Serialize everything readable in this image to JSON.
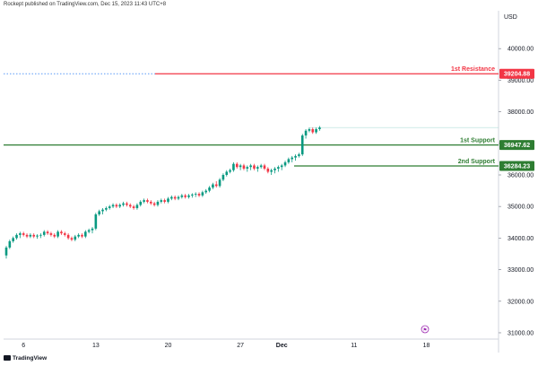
{
  "header": {
    "credit": "Rockept published on TradingView.com, Dec 15, 2023 11:43 UTC+8"
  },
  "footer": {
    "logo": "TradingView"
  },
  "price_axis": {
    "currency": "USD"
  },
  "colors": {
    "resistance": "#f23645",
    "support": "#2e7d32",
    "up_candle": "#089981",
    "down_candle": "#f23645",
    "grid": "#e0e3eb"
  },
  "chart_data": {
    "type": "candlestick",
    "ylim": [
      30800,
      41200
    ],
    "y_ticks": [
      31000,
      32000,
      33000,
      34000,
      35000,
      36000,
      37000,
      38000,
      39000,
      40000
    ],
    "y_tick_labels": [
      "31000.00",
      "32000.00",
      "33000.00",
      "34000.00",
      "35000.00",
      "36000.00",
      "37000.00",
      "38000.00",
      "39000.00",
      "40000.00"
    ],
    "x_ticks": [
      {
        "i": 5,
        "label": "6"
      },
      {
        "i": 26,
        "label": "13"
      },
      {
        "i": 47,
        "label": "20"
      },
      {
        "i": 68,
        "label": "27"
      },
      {
        "i": 80,
        "label": "Dec"
      },
      {
        "i": 101,
        "label": "11"
      },
      {
        "i": 122,
        "label": "18"
      }
    ],
    "levels": [
      {
        "name": "1st Resistance",
        "value": 39204.88,
        "label": "39204.88",
        "kind": "resistance"
      },
      {
        "name": "1st Support",
        "value": 36947.62,
        "label": "36947.62",
        "kind": "support"
      },
      {
        "name": "2nd Support",
        "value": 36284.23,
        "label": "36284.23",
        "kind": "support"
      }
    ],
    "candles": [
      [
        33450,
        33750,
        33350,
        33700
      ],
      [
        33700,
        33950,
        33650,
        33900
      ],
      [
        33900,
        34050,
        33850,
        34000
      ],
      [
        34000,
        34150,
        33950,
        34100
      ],
      [
        34100,
        34200,
        34000,
        34150
      ],
      [
        34150,
        34200,
        34050,
        34100
      ],
      [
        34100,
        34150,
        34000,
        34050
      ],
      [
        34050,
        34150,
        34000,
        34100
      ],
      [
        34100,
        34150,
        34000,
        34050
      ],
      [
        34050,
        34120,
        33980,
        34080
      ],
      [
        34080,
        34150,
        34000,
        34100
      ],
      [
        34100,
        34250,
        34050,
        34200
      ],
      [
        34200,
        34250,
        34100,
        34150
      ],
      [
        34150,
        34200,
        34050,
        34100
      ],
      [
        34100,
        34150,
        34000,
        34050
      ],
      [
        34050,
        34250,
        34000,
        34200
      ],
      [
        34200,
        34250,
        34100,
        34150
      ],
      [
        34150,
        34200,
        34050,
        34100
      ],
      [
        34100,
        34150,
        33950,
        34000
      ],
      [
        34000,
        34050,
        33900,
        33950
      ],
      [
        33950,
        34100,
        33900,
        34050
      ],
      [
        34050,
        34150,
        34000,
        34100
      ],
      [
        34100,
        34150,
        34000,
        34050
      ],
      [
        34050,
        34250,
        34000,
        34200
      ],
      [
        34200,
        34300,
        34150,
        34250
      ],
      [
        34250,
        34350,
        34150,
        34300
      ],
      [
        34300,
        34800,
        34250,
        34750
      ],
      [
        34750,
        34900,
        34700,
        34850
      ],
      [
        34850,
        34950,
        34750,
        34900
      ],
      [
        34900,
        35000,
        34850,
        34950
      ],
      [
        34950,
        35050,
        34900,
        35000
      ],
      [
        35000,
        35100,
        34950,
        35050
      ],
      [
        35050,
        35100,
        34950,
        35000
      ],
      [
        35000,
        35100,
        34950,
        35050
      ],
      [
        35050,
        35150,
        35000,
        35100
      ],
      [
        35100,
        35150,
        35000,
        35050
      ],
      [
        35050,
        35100,
        34950,
        35000
      ],
      [
        35000,
        35050,
        34900,
        34950
      ],
      [
        34950,
        35100,
        34900,
        35050
      ],
      [
        35050,
        35200,
        35000,
        35150
      ],
      [
        35150,
        35250,
        35100,
        35200
      ],
      [
        35200,
        35250,
        35100,
        35150
      ],
      [
        35150,
        35200,
        35050,
        35100
      ],
      [
        35100,
        35150,
        35000,
        35050
      ],
      [
        35050,
        35200,
        35000,
        35150
      ],
      [
        35150,
        35250,
        35100,
        35200
      ],
      [
        35200,
        35250,
        35100,
        35150
      ],
      [
        35150,
        35300,
        35100,
        35250
      ],
      [
        35250,
        35350,
        35200,
        35300
      ],
      [
        35300,
        35350,
        35200,
        35250
      ],
      [
        35250,
        35350,
        35200,
        35300
      ],
      [
        35300,
        35400,
        35250,
        35350
      ],
      [
        35350,
        35400,
        35250,
        35300
      ],
      [
        35300,
        35400,
        35250,
        35350
      ],
      [
        35350,
        35420,
        35280,
        35380
      ],
      [
        35380,
        35450,
        35300,
        35400
      ],
      [
        35400,
        35450,
        35300,
        35350
      ],
      [
        35350,
        35500,
        35300,
        35450
      ],
      [
        35450,
        35550,
        35400,
        35500
      ],
      [
        35500,
        35650,
        35450,
        35600
      ],
      [
        35600,
        35750,
        35550,
        35700
      ],
      [
        35700,
        35800,
        35600,
        35650
      ],
      [
        35650,
        35900,
        35600,
        35850
      ],
      [
        35850,
        36050,
        35800,
        36000
      ],
      [
        36000,
        36150,
        35950,
        36100
      ],
      [
        36100,
        36200,
        36050,
        36150
      ],
      [
        36150,
        36400,
        36100,
        36350
      ],
      [
        36350,
        36400,
        36200,
        36250
      ],
      [
        36250,
        36350,
        36150,
        36300
      ],
      [
        36300,
        36350,
        36150,
        36200
      ],
      [
        36200,
        36300,
        36100,
        36250
      ],
      [
        36250,
        36350,
        36150,
        36300
      ],
      [
        36300,
        36350,
        36150,
        36200
      ],
      [
        36200,
        36300,
        36100,
        36250
      ],
      [
        36250,
        36350,
        36200,
        36300
      ],
      [
        36300,
        36350,
        36150,
        36200
      ],
      [
        36200,
        36250,
        36050,
        36100
      ],
      [
        36100,
        36200,
        36000,
        36150
      ],
      [
        36150,
        36250,
        36050,
        36200
      ],
      [
        36200,
        36300,
        36100,
        36250
      ],
      [
        36250,
        36350,
        36150,
        36300
      ],
      [
        36300,
        36450,
        36250,
        36400
      ],
      [
        36400,
        36550,
        36350,
        36500
      ],
      [
        36500,
        36600,
        36400,
        36550
      ],
      [
        36550,
        36650,
        36450,
        36600
      ],
      [
        36600,
        36700,
        36550,
        36650
      ],
      [
        36650,
        37300,
        36600,
        37250
      ],
      [
        37250,
        37450,
        37150,
        37400
      ],
      [
        37400,
        37500,
        37350,
        37450
      ],
      [
        37450,
        37500,
        37300,
        37350
      ],
      [
        37350,
        37500,
        37300,
        37450
      ],
      [
        37450,
        37550,
        37400,
        37500
      ]
    ]
  }
}
